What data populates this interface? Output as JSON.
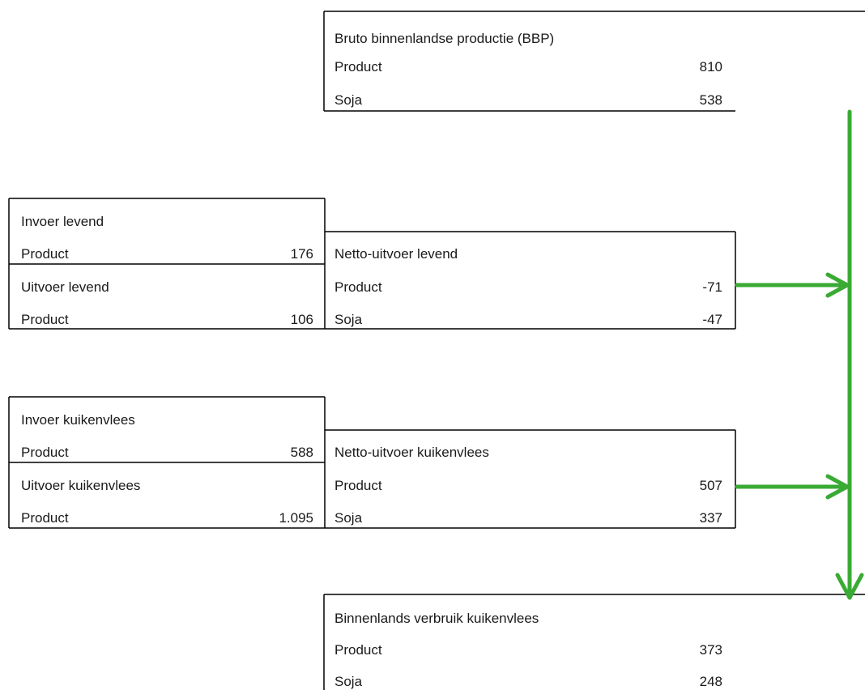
{
  "bbp": {
    "title": "Bruto binnenlandse productie (BBP)",
    "rows": [
      {
        "label": "Product",
        "value": "810"
      },
      {
        "label": "Soja",
        "value": "538"
      }
    ]
  },
  "invoer_levend": {
    "title": "Invoer levend",
    "rows": [
      {
        "label": "Product",
        "value": "176"
      }
    ]
  },
  "uitvoer_levend": {
    "title": "Uitvoer levend",
    "rows": [
      {
        "label": "Product",
        "value": "106"
      }
    ]
  },
  "netto_levend": {
    "title": "Netto-uitvoer levend",
    "rows": [
      {
        "label": "Product",
        "value": "-71"
      },
      {
        "label": "Soja",
        "value": "-47"
      }
    ]
  },
  "invoer_kuikenvlees": {
    "title": "Invoer kuikenvlees",
    "rows": [
      {
        "label": "Product",
        "value": "588"
      }
    ]
  },
  "uitvoer_kuikenvlees": {
    "title": "Uitvoer kuikenvlees",
    "rows": [
      {
        "label": "Product",
        "value": "1.095"
      }
    ]
  },
  "netto_kuikenvlees": {
    "title": "Netto-uitvoer kuikenvlees",
    "rows": [
      {
        "label": "Product",
        "value": "507"
      },
      {
        "label": "Soja",
        "value": "337"
      }
    ]
  },
  "verbruik": {
    "title": "Binnenlands verbruik kuikenvlees",
    "rows": [
      {
        "label": "Product",
        "value": "373"
      },
      {
        "label": "Soja",
        "value": "248"
      }
    ]
  },
  "colors": {
    "line": "#000000",
    "arrow": "#3aaa35"
  }
}
